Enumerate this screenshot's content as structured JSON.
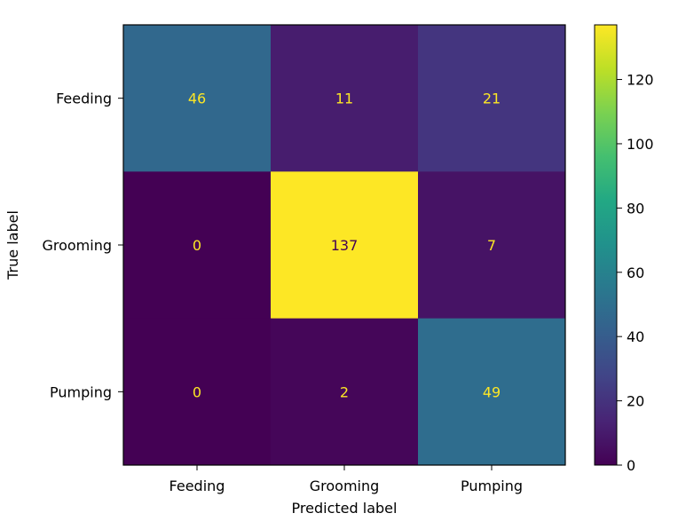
{
  "chart_data": {
    "type": "heatmap",
    "title": "",
    "xlabel": "Predicted label",
    "ylabel": "True label",
    "x_categories": [
      "Feeding",
      "Grooming",
      "Pumping"
    ],
    "y_categories": [
      "Feeding",
      "Grooming",
      "Pumping"
    ],
    "values": [
      [
        46,
        11,
        21
      ],
      [
        0,
        137,
        7
      ],
      [
        0,
        2,
        49
      ]
    ],
    "colormap": "viridis",
    "color_range": [
      0,
      137
    ],
    "colorbar_ticks": [
      0,
      20,
      40,
      60,
      80,
      100,
      120
    ],
    "grid": false
  },
  "colors": {
    "low_text": "#fde725",
    "high_text": "#440154"
  }
}
